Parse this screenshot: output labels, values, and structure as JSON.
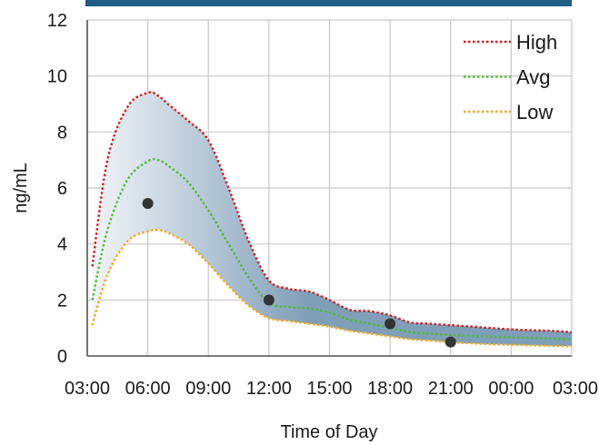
{
  "chart_data": {
    "type": "line",
    "title": "",
    "xlabel": "Time of Day",
    "ylabel": "ng/mL",
    "x_tick_labels": [
      "03:00",
      "06:00",
      "09:00",
      "12:00",
      "15:00",
      "18:00",
      "21:00",
      "00:00",
      "03:00"
    ],
    "x_range_hours": [
      0,
      24
    ],
    "ylim": [
      0,
      12
    ],
    "y_ticks": [
      0,
      2,
      4,
      6,
      8,
      10,
      12
    ],
    "y_tick_labels": [
      "0",
      "2",
      "4",
      "6",
      "8",
      "10",
      "12"
    ],
    "grid": true,
    "legend_position": "top-right",
    "shaded_band_between": [
      "Low",
      "High"
    ],
    "series": [
      {
        "name": "High",
        "color": "#cc1f1f",
        "style": "dotted",
        "x": [
          0.25,
          1,
          2,
          3,
          3.5,
          4,
          5,
          6,
          7,
          8,
          9,
          10,
          11,
          12,
          13,
          14,
          15,
          16,
          17,
          18,
          19,
          20,
          21,
          22,
          23,
          24
        ],
        "y": [
          3.2,
          7.0,
          8.9,
          9.4,
          9.3,
          9.0,
          8.4,
          7.7,
          6.0,
          4.1,
          2.7,
          2.4,
          2.3,
          2.0,
          1.65,
          1.6,
          1.45,
          1.2,
          1.15,
          1.1,
          1.05,
          1.0,
          0.95,
          0.92,
          0.9,
          0.85
        ]
      },
      {
        "name": "Avg",
        "color": "#56b83a",
        "style": "dotted",
        "x": [
          0.25,
          1,
          2,
          3,
          3.5,
          4,
          5,
          6,
          7,
          8,
          9,
          10,
          11,
          12,
          13,
          14,
          15,
          16,
          17,
          18,
          19,
          20,
          21,
          22,
          23,
          24
        ],
        "y": [
          2.0,
          4.5,
          6.3,
          6.95,
          7.0,
          6.8,
          6.2,
          5.2,
          4.0,
          2.8,
          1.9,
          1.75,
          1.7,
          1.55,
          1.3,
          1.15,
          1.0,
          0.85,
          0.8,
          0.75,
          0.72,
          0.7,
          0.67,
          0.65,
          0.62,
          0.6
        ]
      },
      {
        "name": "Low",
        "color": "#f0a81c",
        "style": "dotted",
        "x": [
          0.25,
          1,
          2,
          3,
          3.5,
          4,
          5,
          6,
          7,
          8,
          9,
          10,
          11,
          12,
          13,
          14,
          15,
          16,
          17,
          18,
          19,
          20,
          21,
          22,
          23,
          24
        ],
        "y": [
          1.1,
          2.9,
          4.1,
          4.45,
          4.5,
          4.4,
          4.0,
          3.3,
          2.5,
          1.8,
          1.35,
          1.25,
          1.15,
          1.05,
          0.9,
          0.8,
          0.7,
          0.6,
          0.55,
          0.5,
          0.45,
          0.42,
          0.4,
          0.38,
          0.36,
          0.35
        ]
      },
      {
        "name": "",
        "type": "scatter",
        "color": "#333333",
        "x": [
          3,
          9,
          15,
          18
        ],
        "y": [
          5.45,
          2.0,
          1.15,
          0.5
        ]
      }
    ]
  },
  "colors": {
    "header_bar": "#1f5d85",
    "band_left": "#f2f4f8",
    "band_right": "#7f9fb9",
    "grid": "#c7c7c7",
    "axis": "#555555"
  }
}
